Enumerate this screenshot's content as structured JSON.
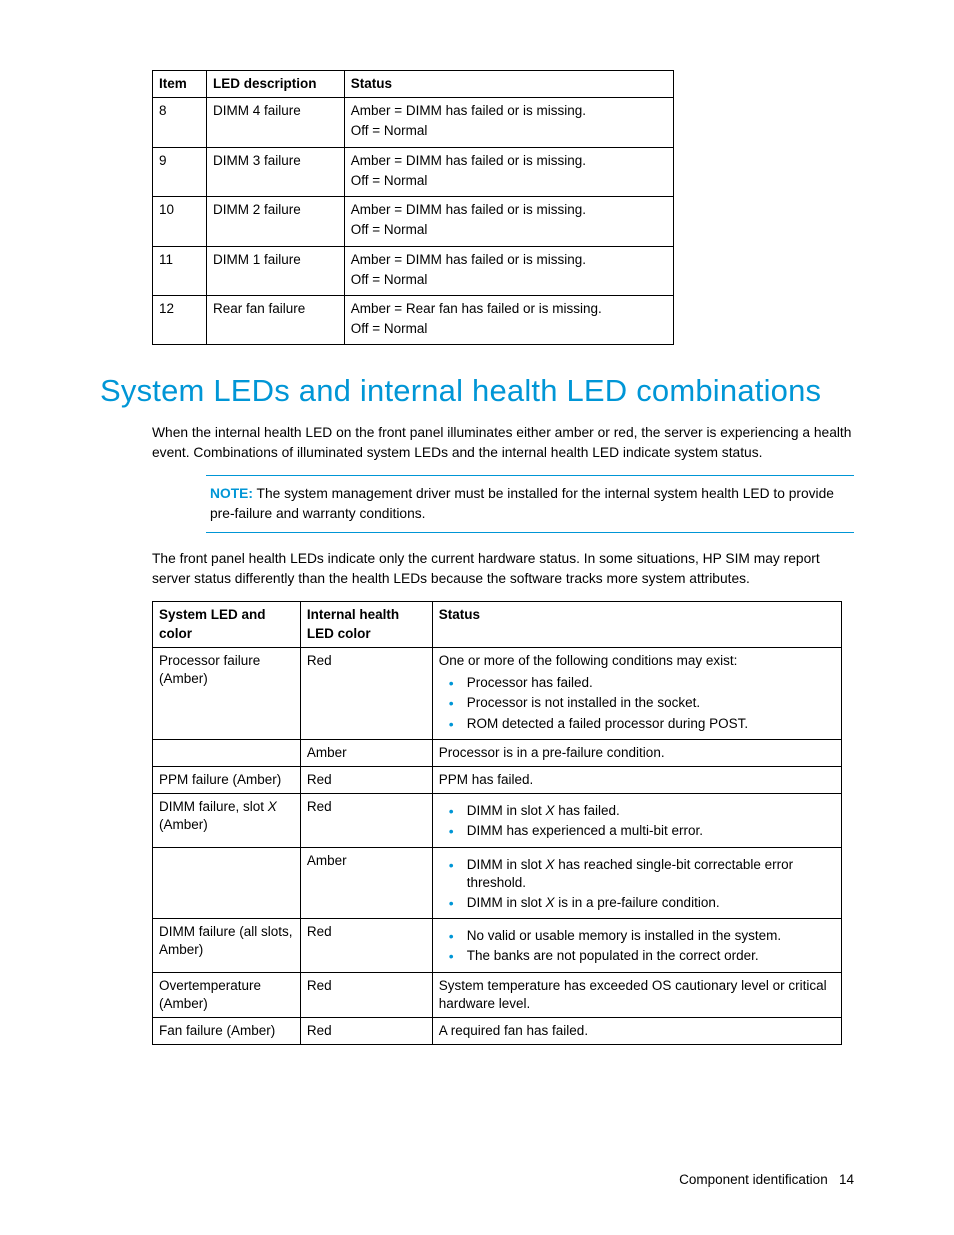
{
  "table1": {
    "headers": [
      "Item",
      "LED description",
      "Status"
    ],
    "rows": [
      {
        "item": "8",
        "desc": "DIMM 4 failure",
        "status": [
          "Amber = DIMM has failed or is missing.",
          "Off = Normal"
        ]
      },
      {
        "item": "9",
        "desc": "DIMM 3 failure",
        "status": [
          "Amber = DIMM has failed or is missing.",
          "Off = Normal"
        ]
      },
      {
        "item": "10",
        "desc": "DIMM 2 failure",
        "status": [
          "Amber = DIMM has failed or is missing.",
          "Off = Normal"
        ]
      },
      {
        "item": "11",
        "desc": "DIMM 1 failure",
        "status": [
          "Amber = DIMM has failed or is missing.",
          "Off = Normal"
        ]
      },
      {
        "item": "12",
        "desc": "Rear fan failure",
        "status": [
          "Amber = Rear fan has failed or is missing.",
          "Off = Normal"
        ]
      }
    ]
  },
  "heading": "System LEDs and internal health LED combinations",
  "para1": "When the internal health LED on the front panel illuminates either amber or red, the server is experiencing a health event. Combinations of illuminated system LEDs and the internal health LED indicate system status.",
  "noteLabel": "NOTE:",
  "noteText": "The system management driver must be installed for the internal system health LED to provide pre-failure and warranty conditions.",
  "para2": "The front panel health LEDs indicate only the current hardware status. In some situations, HP SIM may report server status differently than the health LEDs because the software tracks more system attributes.",
  "table2": {
    "headers": [
      "System LED and color",
      "Internal health LED color",
      "Status"
    ],
    "rows": [
      {
        "col1": "Processor failure (Amber)",
        "col2": "Red",
        "status_intro": "One or more of the following conditions may exist:",
        "bullets": [
          "Processor has failed.",
          "Processor is not installed in the socket.",
          "ROM detected a failed processor during POST."
        ]
      },
      {
        "col1": "",
        "col2": "Amber",
        "status_text": "Processor is in a pre-failure condition."
      },
      {
        "col1": "PPM failure (Amber)",
        "col2": "Red",
        "status_text": "PPM has failed."
      },
      {
        "col1_html": "DIMM failure, slot <span class=\"italic\">X</span> (Amber)",
        "col2": "Red",
        "bullets_html": [
          "DIMM in slot <span class=\"italic\">X</span> has failed.",
          "DIMM has experienced a multi-bit error."
        ]
      },
      {
        "col1": "",
        "col2": "Amber",
        "bullets_html": [
          "DIMM in slot <span class=\"italic\">X</span> has reached single-bit correctable error threshold.",
          "DIMM in slot <span class=\"italic\">X</span> is in a pre-failure condition."
        ]
      },
      {
        "col1": "DIMM failure (all slots, Amber)",
        "col2": "Red",
        "bullets": [
          "No valid or usable memory is installed in the system.",
          "The banks are not populated in the correct order."
        ]
      },
      {
        "col1": "Overtemperature (Amber)",
        "col2": "Red",
        "status_text": "System temperature has exceeded OS cautionary level or critical hardware level."
      },
      {
        "col1": "Fan failure (Amber)",
        "col2": "Red",
        "status_text": "A required fan has failed."
      }
    ]
  },
  "footer": {
    "section": "Component identification",
    "page": "14"
  },
  "colors": {
    "accent": "#0096d6",
    "text": "#000000",
    "bg": "#ffffff"
  }
}
